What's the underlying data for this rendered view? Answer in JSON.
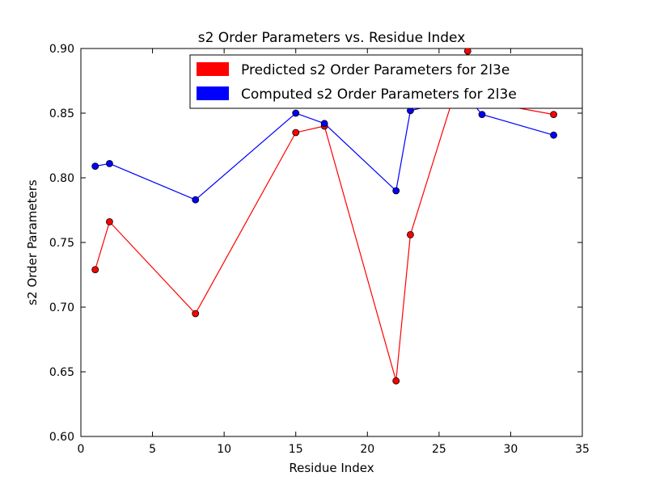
{
  "chart_data": {
    "type": "line",
    "title": "s2 Order Parameters vs. Residue Index",
    "xlabel": "Residue Index",
    "ylabel": "s2 Order Parameters",
    "xlim": [
      0,
      35
    ],
    "ylim": [
      0.6,
      0.9
    ],
    "xticks": [
      0,
      5,
      10,
      15,
      20,
      25,
      30,
      35
    ],
    "yticks": [
      0.6,
      0.65,
      0.7,
      0.75,
      0.8,
      0.85,
      0.9
    ],
    "xtick_labels": [
      "0",
      "5",
      "10",
      "15",
      "20",
      "25",
      "30",
      "35"
    ],
    "ytick_labels": [
      "0.60",
      "0.65",
      "0.70",
      "0.75",
      "0.80",
      "0.85",
      "0.90"
    ],
    "grid": false,
    "legend_position": "top-right",
    "series": [
      {
        "name": "Predicted s2 Order Parameters for 2l3e",
        "color": "#ff0000",
        "x": [
          1,
          2,
          8,
          15,
          17,
          22,
          23,
          27,
          28,
          33
        ],
        "y": [
          0.729,
          0.766,
          0.695,
          0.835,
          0.84,
          0.643,
          0.756,
          0.898,
          0.859,
          0.849
        ]
      },
      {
        "name": "Computed s2 Order Parameters for 2l3e",
        "color": "#0000ff",
        "x": [
          1,
          2,
          8,
          15,
          17,
          22,
          23,
          27,
          28,
          33
        ],
        "y": [
          0.809,
          0.811,
          0.783,
          0.85,
          0.842,
          0.79,
          0.852,
          0.862,
          0.849,
          0.833
        ]
      }
    ]
  }
}
